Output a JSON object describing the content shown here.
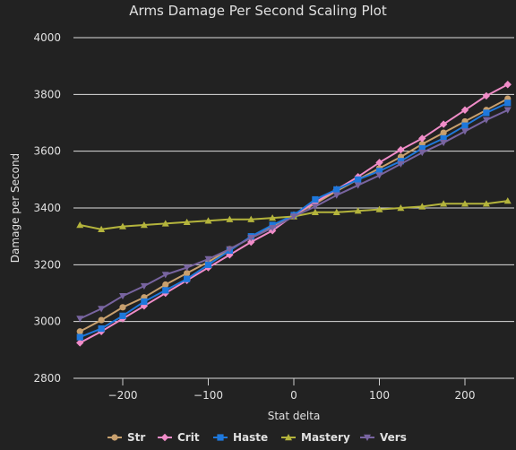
{
  "chart_data": {
    "type": "line",
    "title": "Arms Damage Per Second Scaling Plot",
    "xlabel": "Stat delta",
    "ylabel": "Damage per Second",
    "xlim": [
      -260,
      260
    ],
    "ylim": [
      2800,
      4000
    ],
    "xticks": [
      -200,
      -100,
      0,
      100,
      200
    ],
    "yticks": [
      2800,
      3000,
      3200,
      3400,
      3600,
      3800,
      4000
    ],
    "grid": "horizontal",
    "legend_position": "bottom",
    "x": [
      -250,
      -225,
      -200,
      -175,
      -150,
      -125,
      -100,
      -75,
      -50,
      -25,
      0,
      25,
      50,
      75,
      100,
      125,
      150,
      175,
      200,
      225,
      250
    ],
    "series": [
      {
        "name": "Str",
        "color": "#c8a06e",
        "marker": "circle",
        "values": [
          2965,
          3005,
          3050,
          3085,
          3130,
          3170,
          3210,
          3255,
          3295,
          3335,
          3375,
          3415,
          3460,
          3500,
          3540,
          3580,
          3625,
          3665,
          3705,
          3745,
          3785
        ]
      },
      {
        "name": "Crit",
        "color": "#f08cc8",
        "marker": "diamond",
        "values": [
          2925,
          2965,
          3010,
          3055,
          3100,
          3145,
          3190,
          3235,
          3280,
          3320,
          3375,
          3420,
          3465,
          3510,
          3560,
          3605,
          3645,
          3695,
          3745,
          3795,
          3835
        ]
      },
      {
        "name": "Haste",
        "color": "#1e78dc",
        "marker": "square",
        "values": [
          2945,
          2975,
          3020,
          3070,
          3110,
          3150,
          3200,
          3250,
          3300,
          3340,
          3375,
          3430,
          3465,
          3500,
          3530,
          3565,
          3610,
          3645,
          3690,
          3735,
          3770
        ]
      },
      {
        "name": "Mastery",
        "color": "#b4b43c",
        "marker": "triangle",
        "values": [
          3340,
          3325,
          3335,
          3340,
          3345,
          3350,
          3355,
          3360,
          3360,
          3365,
          3370,
          3385,
          3385,
          3390,
          3395,
          3400,
          3405,
          3415,
          3415,
          3415,
          3425
        ]
      },
      {
        "name": "Vers",
        "color": "#7864a0",
        "marker": "triangle-down",
        "values": [
          3010,
          3045,
          3090,
          3125,
          3165,
          3190,
          3220,
          3255,
          3295,
          3330,
          3370,
          3405,
          3445,
          3480,
          3515,
          3555,
          3595,
          3630,
          3670,
          3710,
          3745
        ]
      }
    ]
  }
}
